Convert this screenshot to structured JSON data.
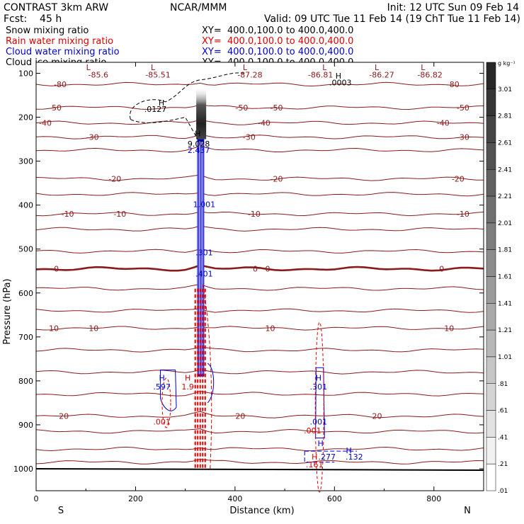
{
  "chart_data": {
    "type": "contour",
    "header": {
      "left1": "CONTRAST  3km ARW",
      "center1": "NCAR/MMM",
      "right1": "Init: 12 UTC Sun 09 Feb 14",
      "left2": "Fcst:    45 h",
      "right2": "Valid: 09 UTC Tue 11 Feb 14 (19 ChT Tue 11 Feb 14)"
    },
    "legend": [
      {
        "label": "Snow mixing ratio",
        "xy": "XY=  400.0,100.0 to 400.0,400.0",
        "color": "#000000"
      },
      {
        "label": "Rain water mixing ratio",
        "xy": "XY=  400.0,100.0 to 400.0,400.0",
        "color": "#e00000"
      },
      {
        "label": "Cloud water mixing ratio",
        "xy": "XY=  400.0,100.0 to 400.0,400.0",
        "color": "#0000d0"
      },
      {
        "label": "Cloud ice mixing ratio",
        "xy": "XY=  400.0,100.0 to 400.0,400.0",
        "color": "#000000"
      }
    ],
    "x_axis": {
      "label": "Distance (km)",
      "range": [
        0,
        900
      ],
      "ticks": [
        0,
        200,
        400,
        600,
        800
      ],
      "left_end": "S",
      "right_end": "N"
    },
    "y_axis": {
      "label": "Pressure (hPa)",
      "range": [
        1050,
        75
      ],
      "ticks": [
        100,
        200,
        300,
        400,
        500,
        600,
        700,
        800,
        900,
        1000
      ]
    },
    "colorbar": {
      "units": "g kg⁻¹",
      "levels": [
        "3.01",
        "2.81",
        "2.61",
        "2.41",
        "2.21",
        "2.01",
        "1.81",
        "1.61",
        "1.41",
        "1.21",
        "1.01",
        ".81",
        ".61",
        ".41",
        ".21",
        ".01"
      ]
    },
    "temperature_contours": [
      {
        "p": 125,
        "label": "-80",
        "label_x": [
          30,
          820
        ]
      },
      {
        "p": 178,
        "label": "-50",
        "label_x": [
          20,
          395,
          465,
          840
        ]
      },
      {
        "p": 213,
        "label": "-40",
        "label_x": [
          0,
          440,
          800
        ]
      },
      {
        "p": 245,
        "label": "-30",
        "label_x": [
          95,
          410,
          840
        ]
      },
      {
        "p": 275,
        "label": "-30",
        "label_x": [
          0,
          0
        ]
      },
      {
        "p": 340,
        "label": "-20",
        "label_x": [
          140,
          465,
          830
        ]
      },
      {
        "p": 375,
        "label": "-20",
        "label_x": [
          0,
          0
        ]
      },
      {
        "p": 420,
        "label": "-10",
        "label_x": [
          45,
          150,
          420,
          840
        ]
      },
      {
        "p": 455,
        "label": "-10",
        "label_x": [
          0,
          0
        ]
      },
      {
        "p": 505,
        "label": "-10",
        "label_x": [
          0,
          0
        ]
      },
      {
        "p": 545,
        "label": "0",
        "label_x": [
          30,
          430,
          455,
          805
        ]
      },
      {
        "p": 590,
        "label": "0",
        "label_x": [
          0,
          0
        ]
      },
      {
        "p": 640,
        "label": "10",
        "label_x": [
          0,
          0
        ]
      },
      {
        "p": 680,
        "label": "10",
        "label_x": [
          20,
          100,
          455,
          815
        ]
      },
      {
        "p": 730,
        "label": "10",
        "label_x": [
          0,
          0
        ]
      },
      {
        "p": 780,
        "label": "10",
        "label_x": [
          0,
          0
        ]
      },
      {
        "p": 830,
        "label": "20",
        "label_x": [
          0,
          0
        ]
      },
      {
        "p": 880,
        "label": "20",
        "label_x": [
          40,
          395,
          670
        ]
      },
      {
        "p": 915,
        "label": "20",
        "label_x": [
          0,
          0
        ]
      },
      {
        "p": 955,
        "label": "20",
        "label_x": [
          0,
          0
        ]
      },
      {
        "p": 985,
        "label": "20",
        "label_x": [
          0,
          0
        ]
      }
    ],
    "minima_labels": [
      {
        "text": "L",
        "x": 105,
        "p": 86
      },
      {
        "text": "-85.6",
        "x": 125,
        "p": 103
      },
      {
        "text": "L",
        "x": 235,
        "p": 86
      },
      {
        "text": "-85.51",
        "x": 245,
        "p": 103
      },
      {
        "text": "L",
        "x": 420,
        "p": 86
      },
      {
        "text": "-87.28",
        "x": 430,
        "p": 103
      },
      {
        "text": "L",
        "x": 580,
        "p": 86
      },
      {
        "text": "-86.81",
        "x": 572,
        "p": 103
      },
      {
        "text": "L",
        "x": 685,
        "p": 86
      },
      {
        "text": "-86.27",
        "x": 695,
        "p": 103
      },
      {
        "text": "L",
        "x": 778,
        "p": 86
      },
      {
        "text": "-86.82",
        "x": 792,
        "p": 103
      }
    ],
    "field_labels": [
      {
        "text": "H",
        "x": 608,
        "p": 106,
        "color": "#000000"
      },
      {
        "text": ".0003",
        "x": 612,
        "p": 121,
        "color": "#000000"
      },
      {
        "text": "H",
        "x": 252,
        "p": 167,
        "color": "#000000"
      },
      {
        "text": ".0127",
        "x": 240,
        "p": 181,
        "color": "#000000"
      },
      {
        "text": "H",
        "x": 325,
        "p": 237,
        "color": "#000000"
      },
      {
        "text": "9.028",
        "x": 327,
        "p": 260,
        "color": "#000000"
      },
      {
        "text": "2.437",
        "x": 327,
        "p": 275,
        "color": "#0000d0"
      },
      {
        "text": "1.001",
        "x": 338,
        "p": 398,
        "color": "#0000d0"
      },
      {
        "text": ".301",
        "x": 338,
        "p": 508,
        "color": "#0000d0"
      },
      {
        "text": ".401",
        "x": 338,
        "p": 556,
        "color": "#0000d0"
      },
      {
        "text": "H",
        "x": 253,
        "p": 793,
        "color": "#0000d0"
      },
      {
        "text": ".597",
        "x": 253,
        "p": 813,
        "color": "#0000d0"
      },
      {
        "text": "H",
        "x": 305,
        "p": 793,
        "color": "#e00000"
      },
      {
        "text": "1.9",
        "x": 305,
        "p": 813,
        "color": "#e00000"
      },
      {
        "text": ".001",
        "x": 253,
        "p": 893,
        "color": "#e00000"
      },
      {
        "text": "H",
        "x": 568,
        "p": 793,
        "color": "#0000d0"
      },
      {
        "text": ".301",
        "x": 568,
        "p": 813,
        "color": "#0000d0"
      },
      {
        "text": ".001",
        "x": 568,
        "p": 893,
        "color": "#0000d0"
      },
      {
        "text": ".001",
        "x": 556,
        "p": 913,
        "color": "#e00000"
      },
      {
        "text": "H",
        "x": 572,
        "p": 942,
        "color": "#0000d0"
      },
      {
        "text": "H",
        "x": 560,
        "p": 973,
        "color": "#e00000"
      },
      {
        "text": ".277",
        "x": 585,
        "p": 973,
        "color": "#0000d0"
      },
      {
        "text": ".161",
        "x": 560,
        "p": 990,
        "color": "#e00000"
      },
      {
        "text": "H",
        "x": 629,
        "p": 958,
        "color": "#0000d0"
      },
      {
        "text": ".132",
        "x": 640,
        "p": 973,
        "color": "#0000d0"
      }
    ]
  }
}
